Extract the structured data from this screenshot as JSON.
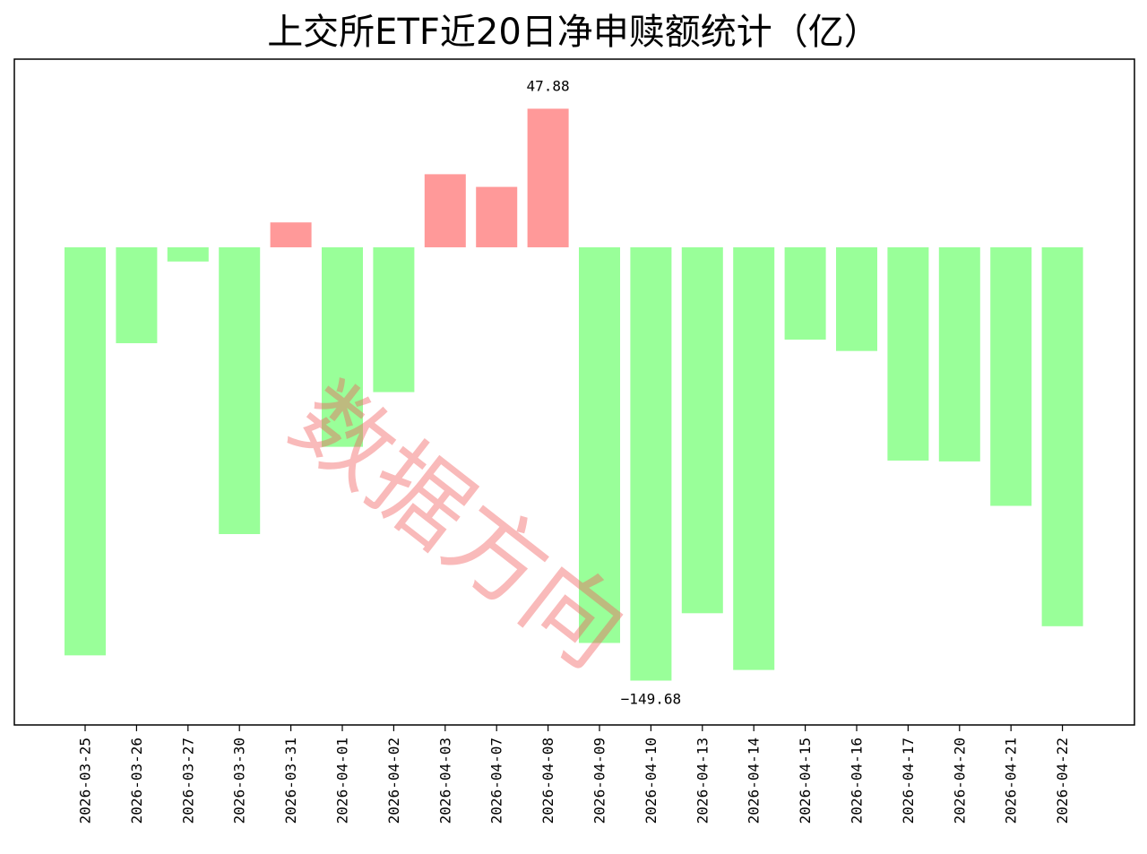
{
  "chart_data": {
    "type": "bar",
    "title": "上交所ETF近20日净申赎额统计（亿）",
    "xlabel": "",
    "ylabel": "",
    "categories": [
      "2026-03-25",
      "2026-03-26",
      "2026-03-27",
      "2026-03-30",
      "2026-03-31",
      "2026-04-01",
      "2026-04-02",
      "2026-04-03",
      "2026-04-07",
      "2026-04-08",
      "2026-04-09",
      "2026-04-10",
      "2026-04-13",
      "2026-04-14",
      "2026-04-15",
      "2026-04-16",
      "2026-04-17",
      "2026-04-20",
      "2026-04-21",
      "2026-04-22"
    ],
    "values": [
      -140.96,
      -33.12,
      -4.9,
      -99.06,
      8.6,
      -68.92,
      -50.02,
      25.25,
      20.87,
      47.88,
      -136.67,
      -149.68,
      -126.4,
      -146.0,
      -31.88,
      -35.81,
      -73.67,
      -73.96,
      -89.31,
      -130.89
    ],
    "ylim": [
      -165,
      65
    ],
    "grid": false,
    "yticks_visible": false,
    "data_labels": [
      {
        "index": 9,
        "text": "47.88"
      },
      {
        "index": 11,
        "text": "−149.68"
      }
    ],
    "colors": {
      "positive": "#ff9999",
      "negative": "#99ff99"
    },
    "watermark": "数据方向"
  }
}
